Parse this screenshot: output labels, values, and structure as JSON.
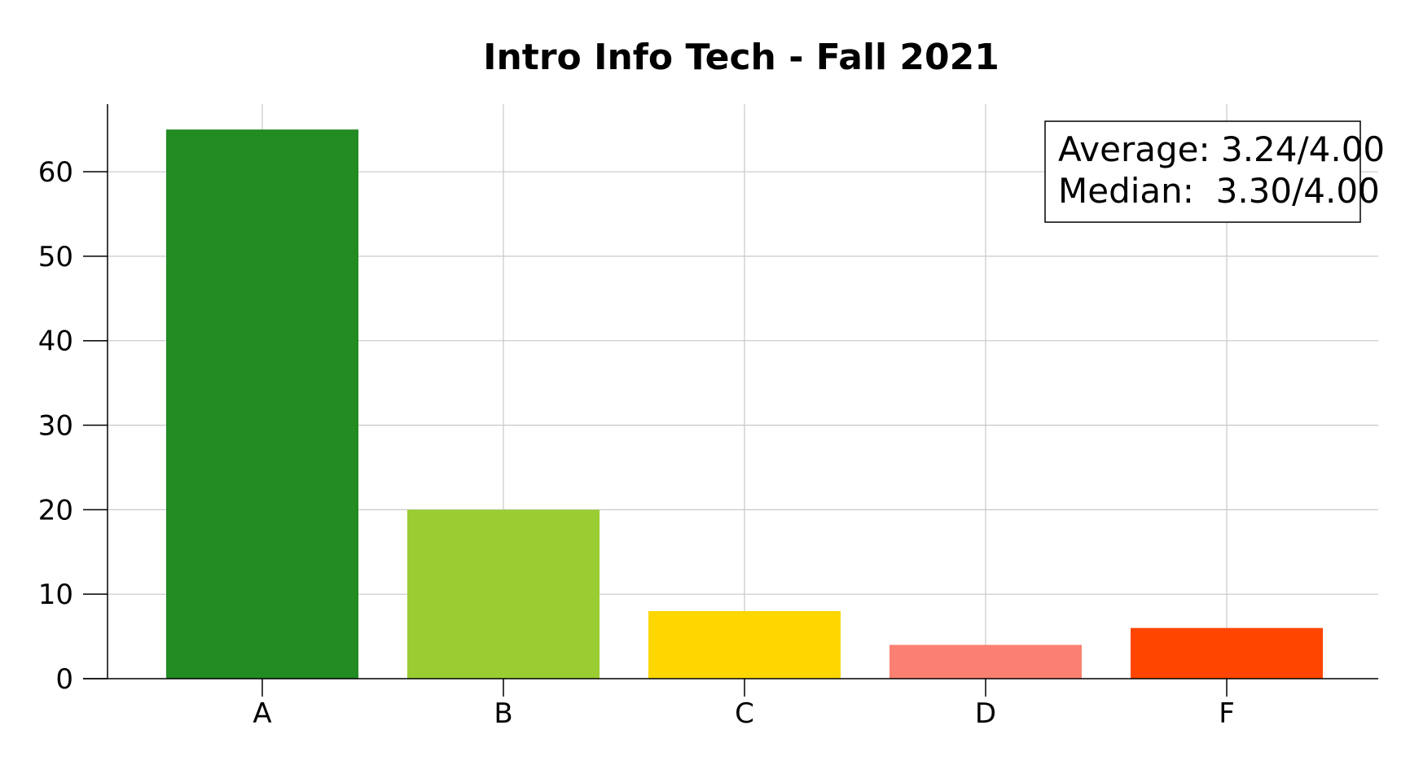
{
  "chart_data": {
    "type": "bar",
    "title": "Intro Info Tech - Fall 2021",
    "xlabel": "",
    "ylabel": "",
    "categories": [
      "A",
      "B",
      "C",
      "D",
      "F"
    ],
    "values": [
      65,
      20,
      8,
      4,
      6
    ],
    "colors": [
      "#228B22",
      "#9ACD32",
      "#FFD700",
      "#FA8072",
      "#FF4500"
    ],
    "ylim": [
      0,
      68
    ],
    "yticks": [
      0,
      10,
      20,
      30,
      40,
      50,
      60
    ],
    "grid": true,
    "annotation": {
      "position": "top-right",
      "lines": [
        "Average: 3.24/4.00",
        "Median:  3.30/4.00"
      ]
    }
  }
}
